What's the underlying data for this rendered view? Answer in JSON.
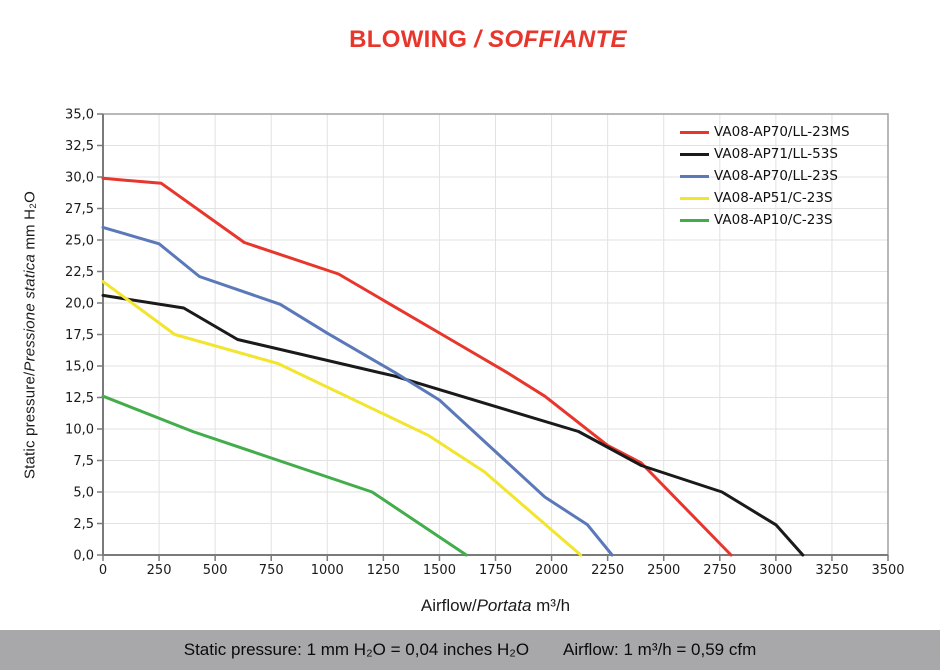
{
  "title": {
    "part1": "BLOWING ",
    "part2": "/ SOFFIANTE"
  },
  "axes": {
    "x_label_part1": "Airflow/",
    "x_label_part2": "Portata",
    "x_label_part3": " m³/h",
    "y_label_part1": "Static pressure/",
    "y_label_part2": "Pressione statica",
    "y_label_part3": " mm H₂O"
  },
  "footer": {
    "left": "Static pressure: 1 mm H₂O = 0,04 inches H₂O",
    "right": "Airflow: 1 m³/h = 0,59 cfm"
  },
  "colors": {
    "title": "#e8362d",
    "grid": "#e2e2e2",
    "border": "#a0a0a0",
    "axis": "#7a7a7a",
    "tick_label": "#1a1a1a",
    "footer_bg": "#a8a8ab"
  },
  "chart_data": {
    "type": "line",
    "title": "BLOWING / SOFFIANTE",
    "xlabel": "Airflow/Portata m³/h",
    "ylabel": "Static pressure/Pressione statica mm H₂O",
    "xlim": [
      0,
      3500
    ],
    "ylim": [
      0,
      35
    ],
    "x_ticks": [
      0,
      250,
      500,
      750,
      1000,
      1250,
      1500,
      1750,
      2000,
      2250,
      2500,
      2750,
      3000,
      3250,
      3500
    ],
    "x_tick_labels": [
      "0",
      "250",
      "500",
      "750",
      "1000",
      "1250",
      "1500",
      "1750",
      "2000",
      "2250",
      "2500",
      "2750",
      "3000",
      "3250",
      "3500"
    ],
    "y_ticks": [
      0,
      2.5,
      5,
      7.5,
      10,
      12.5,
      15,
      17.5,
      20,
      22.5,
      25,
      27.5,
      30,
      32.5,
      35
    ],
    "y_tick_labels": [
      "0,0",
      "2,5",
      "5,0",
      "7,5",
      "10,0",
      "12,5",
      "15,0",
      "17,5",
      "20,0",
      "22,5",
      "25,0",
      "27,5",
      "30,0",
      "32,5",
      "35,0"
    ],
    "grid": true,
    "legend_position": "top-right-inside",
    "series": [
      {
        "name": "VA08-AP70/LL-23MS",
        "color": "#e8362d",
        "points": [
          [
            0,
            29.9
          ],
          [
            260,
            29.5
          ],
          [
            630,
            24.8
          ],
          [
            1050,
            22.3
          ],
          [
            1300,
            19.7
          ],
          [
            1550,
            17.1
          ],
          [
            1800,
            14.5
          ],
          [
            1970,
            12.6
          ],
          [
            2250,
            8.7
          ],
          [
            2400,
            7.3
          ],
          [
            2800,
            0
          ]
        ]
      },
      {
        "name": "VA08-AP71/LL-53S",
        "color": "#1a1a1a",
        "points": [
          [
            0,
            20.6
          ],
          [
            360,
            19.6
          ],
          [
            600,
            17.1
          ],
          [
            1300,
            14.2
          ],
          [
            2120,
            9.8
          ],
          [
            2400,
            7.1
          ],
          [
            2760,
            5.0
          ],
          [
            3000,
            2.4
          ],
          [
            3120,
            0
          ]
        ]
      },
      {
        "name": "VA08-AP70/LL-23S",
        "color": "#5b78b8",
        "points": [
          [
            0,
            26.0
          ],
          [
            250,
            24.7
          ],
          [
            430,
            22.1
          ],
          [
            790,
            19.9
          ],
          [
            1000,
            17.6
          ],
          [
            1300,
            14.5
          ],
          [
            1500,
            12.3
          ],
          [
            1970,
            4.6
          ],
          [
            2160,
            2.4
          ],
          [
            2270,
            0
          ]
        ]
      },
      {
        "name": "VA08-AP51/C-23S",
        "color": "#f2e52e",
        "points": [
          [
            0,
            21.7
          ],
          [
            320,
            17.5
          ],
          [
            780,
            15.2
          ],
          [
            1250,
            11.2
          ],
          [
            1450,
            9.5
          ],
          [
            1700,
            6.6
          ],
          [
            2130,
            0
          ]
        ]
      },
      {
        "name": "VA08-AP10/C-23S",
        "color": "#42ad4a",
        "points": [
          [
            0,
            12.6
          ],
          [
            400,
            9.8
          ],
          [
            1200,
            5.0
          ],
          [
            1620,
            0
          ]
        ]
      }
    ]
  }
}
